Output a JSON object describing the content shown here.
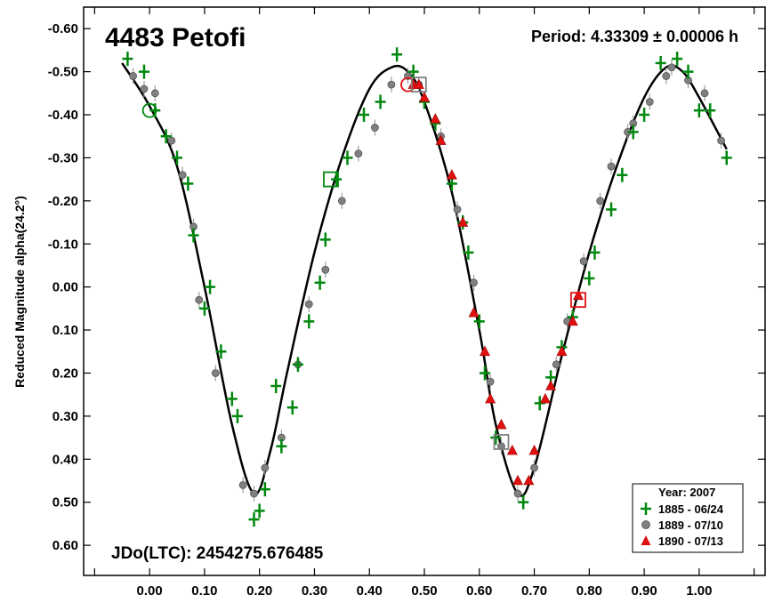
{
  "chart_data": {
    "type": "scatter",
    "title": "4483 Petofi",
    "period_text": "Period: 4.33309 ± 0.00006 h",
    "epoch_text": "JDo(LTC): 2454275.676485",
    "ylabel": "Reduced Magnitude alpha(24.2°)",
    "xlabel": "",
    "xlim": [
      -0.12,
      1.12
    ],
    "ylim": [
      -0.65,
      0.67
    ],
    "y_inverted": true,
    "x_ticks": [
      "0.00",
      "0.10",
      "0.20",
      "0.30",
      "0.40",
      "0.50",
      "0.60",
      "0.70",
      "0.80",
      "0.90",
      "1.00"
    ],
    "y_ticks": [
      "-0.60",
      "-0.50",
      "-0.40",
      "-0.30",
      "-0.20",
      "-0.10",
      "0.00",
      "0.10",
      "0.20",
      "0.30",
      "0.40",
      "0.50",
      "0.60"
    ],
    "grid": false,
    "legend": {
      "title": "Year: 2007",
      "placement": "bottom-right",
      "entries": [
        "1885 - 06/24",
        "1889 - 07/10",
        "1890 - 07/13"
      ]
    },
    "colors": {
      "green": "#00880e",
      "gray": "#808080",
      "red": "#e01010",
      "curve": "#000000"
    },
    "fit_curve": {
      "x": [
        -0.05,
        0.0,
        0.05,
        0.1,
        0.15,
        0.19,
        0.22,
        0.25,
        0.3,
        0.35,
        0.4,
        0.44,
        0.47,
        0.5,
        0.55,
        0.6,
        0.63,
        0.67,
        0.7,
        0.75,
        0.8,
        0.85,
        0.9,
        0.94,
        0.97,
        1.0,
        1.05
      ],
      "y": [
        -0.52,
        -0.42,
        -0.28,
        0.0,
        0.32,
        0.48,
        0.38,
        0.2,
        -0.08,
        -0.3,
        -0.46,
        -0.51,
        -0.5,
        -0.43,
        -0.22,
        0.1,
        0.32,
        0.48,
        0.42,
        0.16,
        -0.08,
        -0.28,
        -0.44,
        -0.51,
        -0.5,
        -0.44,
        -0.32
      ]
    },
    "series": [
      {
        "name": "1885 - 06/24",
        "marker": "plus",
        "color": "#00880e",
        "x": [
          -0.04,
          -0.01,
          0.01,
          0.03,
          0.05,
          0.07,
          0.08,
          0.1,
          0.11,
          0.13,
          0.15,
          0.16,
          0.19,
          0.2,
          0.21,
          0.23,
          0.24,
          0.26,
          0.27,
          0.29,
          0.31,
          0.32,
          0.34,
          0.36,
          0.39,
          0.42,
          0.45,
          0.48,
          0.5,
          0.52,
          0.55,
          0.57,
          0.58,
          0.6,
          0.61,
          0.63,
          0.68,
          0.71,
          0.73,
          0.75,
          0.77,
          0.8,
          0.81,
          0.84,
          0.86,
          0.88,
          0.9,
          0.93,
          0.96,
          0.98,
          1.0,
          1.02,
          1.05
        ],
        "y": [
          -0.53,
          -0.5,
          -0.41,
          -0.35,
          -0.3,
          -0.24,
          -0.12,
          0.05,
          0.0,
          0.15,
          0.26,
          0.3,
          0.54,
          0.52,
          0.47,
          0.23,
          0.37,
          0.28,
          0.18,
          0.08,
          -0.01,
          -0.11,
          -0.25,
          -0.3,
          -0.4,
          -0.43,
          -0.54,
          -0.5,
          -0.43,
          -0.38,
          -0.24,
          -0.15,
          -0.08,
          0.08,
          0.2,
          0.35,
          0.5,
          0.27,
          0.21,
          0.14,
          0.07,
          -0.02,
          -0.08,
          -0.18,
          -0.26,
          -0.36,
          -0.4,
          -0.52,
          -0.53,
          -0.5,
          -0.41,
          -0.41,
          -0.3
        ]
      },
      {
        "name": "1889 - 07/10",
        "marker": "circle",
        "color": "#808080",
        "x": [
          -0.03,
          -0.01,
          0.01,
          0.04,
          0.06,
          0.08,
          0.09,
          0.12,
          0.17,
          0.19,
          0.21,
          0.24,
          0.27,
          0.29,
          0.32,
          0.35,
          0.38,
          0.41,
          0.44,
          0.47,
          0.49,
          0.53,
          0.56,
          0.59,
          0.62,
          0.64,
          0.67,
          0.7,
          0.74,
          0.76,
          0.79,
          0.82,
          0.84,
          0.87,
          0.88,
          0.91,
          0.94,
          0.95,
          0.98,
          1.01,
          1.04
        ],
        "y": [
          -0.49,
          -0.46,
          -0.45,
          -0.34,
          -0.26,
          -0.14,
          0.03,
          0.2,
          0.46,
          0.48,
          0.42,
          0.35,
          0.18,
          0.04,
          -0.04,
          -0.2,
          -0.31,
          -0.37,
          -0.47,
          -0.49,
          -0.47,
          -0.35,
          -0.18,
          -0.01,
          0.22,
          0.37,
          0.48,
          0.42,
          0.18,
          0.08,
          -0.06,
          -0.2,
          -0.28,
          -0.36,
          -0.38,
          -0.43,
          -0.49,
          -0.51,
          -0.48,
          -0.45,
          -0.34
        ]
      },
      {
        "name": "1890 - 07/13",
        "marker": "triangle",
        "color": "#e01010",
        "x": [
          0.48,
          0.49,
          0.5,
          0.52,
          0.53,
          0.55,
          0.57,
          0.59,
          0.61,
          0.62,
          0.64,
          0.66,
          0.67,
          0.69,
          0.7,
          0.72,
          0.73,
          0.75,
          0.77,
          0.78
        ],
        "y": [
          -0.47,
          -0.47,
          -0.44,
          -0.39,
          -0.34,
          -0.26,
          -0.15,
          0.06,
          0.15,
          0.26,
          0.32,
          0.38,
          0.45,
          0.45,
          0.38,
          0.26,
          0.23,
          0.15,
          0.08,
          0.02
        ]
      }
    ],
    "anchor_points": [
      {
        "marker": "open-circle",
        "color": "#00880e",
        "x": 0.0,
        "y": -0.41
      },
      {
        "marker": "open-square",
        "color": "#00880e",
        "x": 0.33,
        "y": -0.25
      },
      {
        "marker": "open-circle",
        "color": "#e01010",
        "x": 0.47,
        "y": -0.47
      },
      {
        "marker": "open-square",
        "color": "#808080",
        "x": 0.49,
        "y": -0.47
      },
      {
        "marker": "open-square",
        "color": "#808080",
        "x": 0.64,
        "y": 0.36
      },
      {
        "marker": "open-square",
        "color": "#e01010",
        "x": 0.78,
        "y": 0.03
      }
    ]
  }
}
